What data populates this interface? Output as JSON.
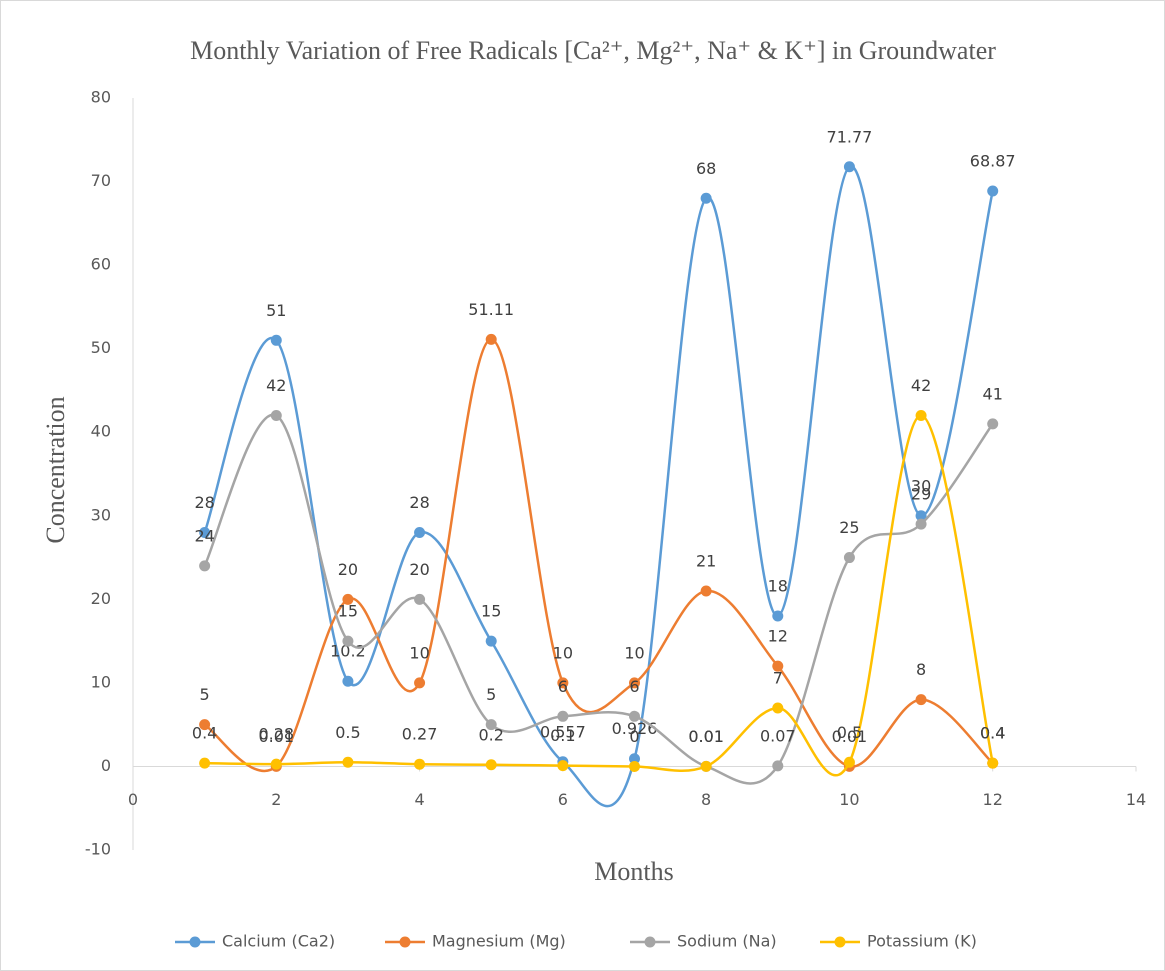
{
  "chart_data": {
    "type": "scatter-smooth",
    "title": "Monthly Variation of Free Radicals [Ca²⁺, Mg²⁺, Na⁺ & K⁺] in Groundwater",
    "x_label": "Months",
    "y_label": "Concentration",
    "x": [
      1,
      2,
      3,
      4,
      5,
      6,
      7,
      8,
      9,
      10,
      11,
      12
    ],
    "series": [
      {
        "name": "Calcium (Ca2)",
        "color": "#5b9bd5",
        "values": [
          28,
          51,
          10.2,
          28,
          15,
          0.557,
          0.926,
          68,
          18,
          71.77,
          30,
          68.87
        ]
      },
      {
        "name": "Magnesium (Mg)",
        "color": "#ed7d31",
        "values": [
          5,
          0.01,
          20,
          10,
          51.11,
          10,
          10,
          21,
          12,
          0.01,
          8,
          0.4
        ]
      },
      {
        "name": "Sodium (Na)",
        "color": "#a5a5a5",
        "values": [
          24,
          42,
          15,
          20,
          5,
          6,
          6,
          0.01,
          0.07,
          25,
          29,
          41
        ]
      },
      {
        "name": "Potassium (K)",
        "color": "#ffc000",
        "values": [
          0.4,
          0.28,
          0.5,
          0.27,
          0.2,
          0.1,
          0,
          0.01,
          7,
          0.5,
          42,
          0.4
        ]
      }
    ],
    "xlim": [
      0,
      14
    ],
    "xticks": [
      0,
      2,
      4,
      6,
      8,
      10,
      12,
      14
    ],
    "ylim": [
      -10,
      80
    ],
    "yticks": [
      -10,
      0,
      10,
      20,
      30,
      40,
      50,
      60,
      70,
      80
    ],
    "legend": "bottom",
    "grid": false
  }
}
